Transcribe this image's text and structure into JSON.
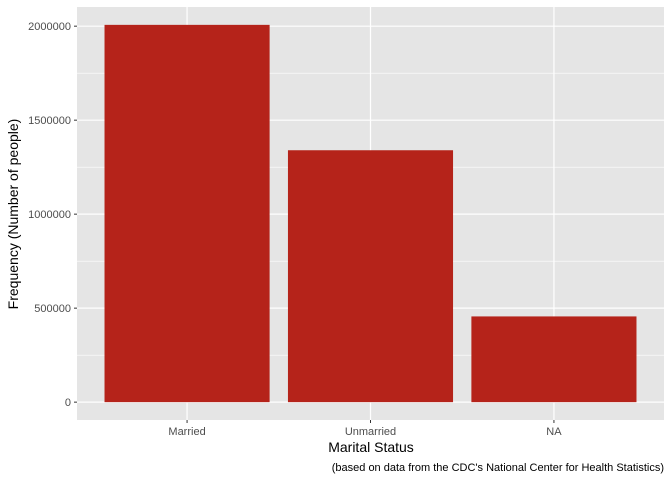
{
  "chart_data": {
    "type": "bar",
    "categories": [
      "Married",
      "Unmarried",
      "NA"
    ],
    "values": [
      2007000,
      1340000,
      456000
    ],
    "xlabel": "Marital Status",
    "ylabel": "Frequency (Number of people)",
    "caption": "(based on data from the CDC's National Center for Health Statistics)",
    "ylim": [
      -95000,
      2102000
    ],
    "yticks": [
      0,
      500000,
      1000000,
      1500000,
      2000000
    ],
    "ytick_labels": [
      "0",
      "500000",
      "1000000",
      "1500000",
      "2000000"
    ],
    "grid": true,
    "bar_color": "#B5231A",
    "panel_color": "#E5E5E5",
    "grid_color": "#FFFFFF"
  }
}
